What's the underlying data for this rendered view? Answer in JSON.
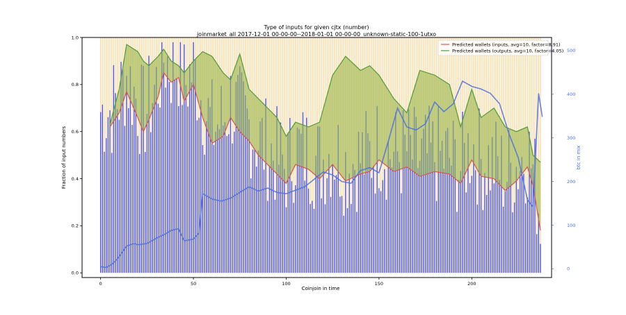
{
  "chart_data": {
    "type": "bar",
    "title": "Type of inputs for given cjtx (number)",
    "subtitle": "joinmarket_all 2017-12-01 00-00-00--2018-01-01 00-00-00_unknown-static-100-1utxo",
    "xlabel": "Coinjoin in time",
    "ylabel": "Fraction of input numbers",
    "y2label": "btc in mix",
    "xlim": [
      -10,
      243
    ],
    "ylim": [
      -0.02,
      1.0
    ],
    "y2lim": [
      -20,
      530
    ],
    "xticks": [
      "0",
      "50",
      "100",
      "150",
      "200"
    ],
    "yticks": [
      "0.0",
      "0.2",
      "0.4",
      "0.6",
      "0.8",
      "1.0"
    ],
    "y2ticks": [
      "0",
      "100",
      "200",
      "300",
      "400",
      "500"
    ],
    "grid": false,
    "legend_position": "top-right",
    "colors": {
      "bars_main": "#4040d0",
      "bars_secondary": "#f5c060",
      "inputs_line": "#d9534f",
      "outputs_line": "#4f9a3a",
      "outputs_fill": "#9ab54a",
      "btc_line": "#4a6fe3",
      "axis_right": "#4a6fe3"
    },
    "series": [
      {
        "name": "Predicted wallets (inputs, avg=10, factor=8.91)",
        "role": "inputs",
        "x": [
          5,
          10,
          14,
          20,
          23,
          26,
          31,
          34,
          38,
          42,
          45,
          50,
          55,
          60,
          66,
          70,
          75,
          80,
          85,
          90,
          95,
          100,
          105,
          112,
          118,
          125,
          132,
          140,
          145,
          150,
          158,
          165,
          172,
          180,
          188,
          194,
          200,
          205,
          212,
          218,
          224,
          230,
          233,
          237
        ],
        "values": [
          0.62,
          0.68,
          0.77,
          0.66,
          0.6,
          0.65,
          0.75,
          0.85,
          0.81,
          0.83,
          0.73,
          0.8,
          0.66,
          0.55,
          0.58,
          0.66,
          0.6,
          0.56,
          0.5,
          0.46,
          0.42,
          0.38,
          0.46,
          0.44,
          0.4,
          0.46,
          0.39,
          0.42,
          0.43,
          0.48,
          0.43,
          0.45,
          0.41,
          0.43,
          0.42,
          0.38,
          0.48,
          0.41,
          0.4,
          0.35,
          0.39,
          0.45,
          0.37,
          0.18
        ]
      },
      {
        "name": "Predicted wallets (outputs, avg=10, factor=4.05)",
        "role": "outputs",
        "x": [
          5,
          10,
          14,
          20,
          23,
          26,
          31,
          34,
          38,
          42,
          45,
          50,
          55,
          60,
          66,
          70,
          75,
          80,
          85,
          90,
          95,
          100,
          105,
          112,
          118,
          125,
          132,
          140,
          145,
          150,
          158,
          165,
          172,
          180,
          188,
          194,
          200,
          205,
          212,
          218,
          224,
          230,
          233,
          237
        ],
        "values": [
          0.63,
          0.78,
          0.97,
          0.94,
          0.9,
          0.88,
          0.92,
          0.95,
          0.9,
          0.88,
          0.85,
          0.9,
          0.94,
          0.92,
          0.85,
          0.82,
          0.93,
          0.78,
          0.74,
          0.7,
          0.66,
          0.58,
          0.64,
          0.62,
          0.64,
          0.84,
          0.92,
          0.86,
          0.88,
          0.84,
          0.74,
          0.68,
          0.86,
          0.84,
          0.8,
          0.62,
          0.78,
          0.66,
          0.7,
          0.62,
          0.6,
          0.62,
          0.5,
          0.47
        ]
      },
      {
        "name": "btc in mix",
        "role": "btc",
        "axis": "right",
        "x": [
          0,
          3,
          6,
          8,
          10,
          14,
          18,
          20,
          25,
          30,
          35,
          38,
          42,
          45,
          50,
          53,
          55,
          60,
          65,
          70,
          75,
          80,
          85,
          90,
          95,
          100,
          105,
          110,
          115,
          120,
          125,
          130,
          135,
          140,
          145,
          150,
          155,
          160,
          165,
          170,
          175,
          180,
          185,
          190,
          195,
          200,
          205,
          210,
          215,
          220,
          225,
          230,
          233,
          236,
          238
        ],
        "values": [
          5,
          3,
          10,
          18,
          28,
          52,
          58,
          55,
          58,
          70,
          80,
          88,
          92,
          64,
          68,
          82,
          172,
          160,
          155,
          162,
          175,
          188,
          178,
          185,
          175,
          172,
          180,
          188,
          205,
          222,
          215,
          200,
          196,
          225,
          232,
          220,
          292,
          368,
          325,
          318,
          332,
          382,
          360,
          378,
          430,
          418,
          412,
          402,
          378,
          310,
          255,
          158,
          142,
          402,
          348
        ]
      }
    ]
  }
}
